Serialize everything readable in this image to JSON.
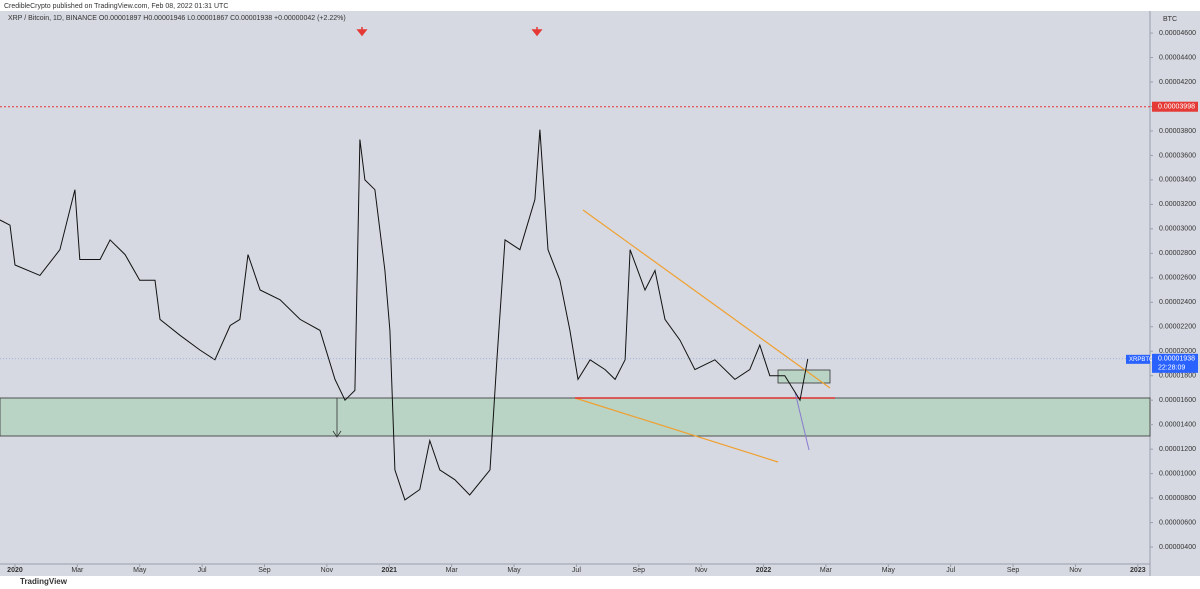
{
  "chart_data": {
    "type": "line",
    "subtitle": "CredibleCrypto published on TradingView.com, Feb 08, 2022 01:31 UTC",
    "title": "XRP / Bitcoin, 1D, BINANCE  O0.00001897  H0.00001946  L0.00001867  C0.00001938  +0.00000042 (+2.22%)",
    "y_axis_label": "BTC",
    "price_line": 3.998e-05,
    "symbol": "XRPBTC",
    "last_price": 1.938e-05,
    "countdown": "22:28:09",
    "watermark": "TradingView",
    "grid": false,
    "xlim": [
      -0.48,
      36.39
    ],
    "ylim": [
      3.35e-06,
      4.772e-05
    ],
    "xticks": [
      {
        "value": 0,
        "label": "2020"
      },
      {
        "value": 2,
        "label": "Mar"
      },
      {
        "value": 4,
        "label": "May"
      },
      {
        "value": 6,
        "label": "Jul"
      },
      {
        "value": 8,
        "label": "Sep"
      },
      {
        "value": 10,
        "label": "Nov"
      },
      {
        "value": 12,
        "label": "2021"
      },
      {
        "value": 14,
        "label": "Mar"
      },
      {
        "value": 16,
        "label": "May"
      },
      {
        "value": 18,
        "label": "Jul"
      },
      {
        "value": 20,
        "label": "Sep"
      },
      {
        "value": 22,
        "label": "Nov"
      },
      {
        "value": 24,
        "label": "2022"
      },
      {
        "value": 26,
        "label": "Mar"
      },
      {
        "value": 28,
        "label": "May"
      },
      {
        "value": 30,
        "label": "Jul"
      },
      {
        "value": 32,
        "label": "Sep"
      },
      {
        "value": 34,
        "label": "Nov"
      },
      {
        "value": 36,
        "label": "2023"
      }
    ],
    "yticks": [
      {
        "value": 4.6e-05,
        "label": "0.00004600"
      },
      {
        "value": 4.4e-05,
        "label": "0.00004400"
      },
      {
        "value": 4.2e-05,
        "label": "0.00004200"
      },
      {
        "value": 4e-05,
        "label": "0.00004000"
      },
      {
        "value": 3.8e-05,
        "label": "0.00003800"
      },
      {
        "value": 3.6e-05,
        "label": "0.00003600"
      },
      {
        "value": 3.4e-05,
        "label": "0.00003400"
      },
      {
        "value": 3.2e-05,
        "label": "0.00003200"
      },
      {
        "value": 3e-05,
        "label": "0.00003000"
      },
      {
        "value": 2.8e-05,
        "label": "0.00002800"
      },
      {
        "value": 2.6e-05,
        "label": "0.00002600"
      },
      {
        "value": 2.4e-05,
        "label": "0.00002400"
      },
      {
        "value": 2.2e-05,
        "label": "0.00002200"
      },
      {
        "value": 2e-05,
        "label": "0.00002000"
      },
      {
        "value": 1.8e-05,
        "label": "0.00001800"
      },
      {
        "value": 1.6e-05,
        "label": "0.00001600"
      },
      {
        "value": 1.4e-05,
        "label": "0.00001400"
      },
      {
        "value": 1.2e-05,
        "label": "0.00001200"
      },
      {
        "value": 1e-05,
        "label": "0.00001000"
      },
      {
        "value": 8e-06,
        "label": "0.00000800"
      },
      {
        "value": 6e-06,
        "label": "0.00000600"
      },
      {
        "value": 4e-06,
        "label": "0.00000400"
      }
    ],
    "series": [
      {
        "color": "#111111",
        "x": [
          -0.48,
          -0.16,
          0,
          0.8,
          1.44,
          1.92,
          2.08,
          2.73,
          3.05,
          3.53,
          4.0,
          4.49,
          4.65,
          5.29,
          5.93,
          6.41,
          6.9,
          7.21,
          7.47,
          7.86,
          8.5,
          9.14,
          9.78,
          10.26,
          10.58,
          10.9,
          11.06,
          11.22,
          11.54,
          11.86,
          12.02,
          12.18,
          12.5,
          12.98,
          13.3,
          13.62,
          14.1,
          14.58,
          15.23,
          15.45,
          15.71,
          16.19,
          16.67,
          16.83,
          17.09,
          17.47,
          17.79,
          18.05,
          18.44,
          18.92,
          19.24,
          19.56,
          19.72,
          20.2,
          20.52,
          20.84,
          21.32,
          21.8,
          22.44,
          23.08,
          23.56,
          23.88,
          24.2,
          24.68,
          25.17,
          25.42
        ],
        "values": [
          3.072e-05,
          3.03e-05,
          2.705e-05,
          2.62e-05,
          2.83e-05,
          3.32e-05,
          2.75e-05,
          2.75e-05,
          2.91e-05,
          2.79e-05,
          2.58e-05,
          2.58e-05,
          2.26e-05,
          2.13e-05,
          2.01e-05,
          1.93e-05,
          2.21e-05,
          2.26e-05,
          2.79e-05,
          2.5e-05,
          2.42e-05,
          2.26e-05,
          2.17e-05,
          1.77e-05,
          1.6e-05,
          1.68e-05,
          3.73e-05,
          3.4e-05,
          3.32e-05,
          2.66e-05,
          2.17e-05,
          1.03e-05,
          7.85e-06,
          8.7e-06,
          1.27e-05,
          1.03e-05,
          9.5e-06,
          8.25e-06,
          1.03e-05,
          1.93e-05,
          2.91e-05,
          2.83e-05,
          3.24e-05,
          3.81e-05,
          2.83e-05,
          2.58e-05,
          2.17e-05,
          1.77e-05,
          1.93e-05,
          1.85e-05,
          1.77e-05,
          1.93e-05,
          2.83e-05,
          2.5e-05,
          2.66e-05,
          2.26e-05,
          2.09e-05,
          1.85e-05,
          1.93e-05,
          1.77e-05,
          1.85e-05,
          2.05e-05,
          1.8e-05,
          1.8e-05,
          1.6e-05,
          1.938e-05
        ]
      }
    ]
  }
}
